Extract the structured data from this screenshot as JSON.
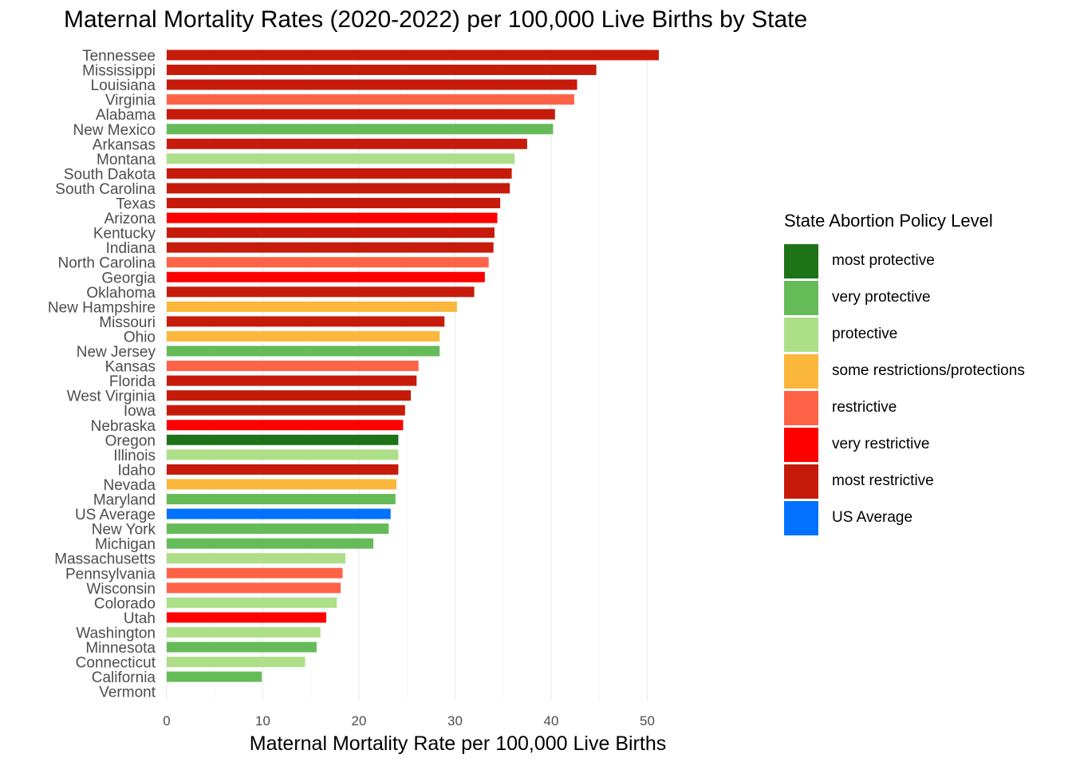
{
  "chart_data": {
    "type": "bar",
    "orientation": "horizontal",
    "title": "Maternal Mortality Rates (2020-2022) per 100,000 Live Births by State",
    "xlabel": "Maternal Mortality Rate per 100,000 Live Births",
    "ylabel": "",
    "xlim": [
      0,
      54
    ],
    "xticks": [
      0,
      10,
      20,
      30,
      40,
      50
    ],
    "grid": "vertical",
    "legend_title": "State Abortion Policy Level",
    "legend_position": "right",
    "policy_colors": {
      "most protective": "#1e7318",
      "very protective": "#65bb58",
      "protective": "#addf88",
      "some restrictions/protections": "#fbb73c",
      "restrictive": "#ff6347",
      "very restrictive": "#ff0000",
      "most restrictive": "#c61b0b",
      "US Average": "#0072ff"
    },
    "legend_entries": [
      "most protective",
      "very protective",
      "protective",
      "some restrictions/protections",
      "restrictive",
      "very restrictive",
      "most restrictive",
      "US Average"
    ],
    "bars": [
      {
        "category": "Tennessee",
        "value": 51.2,
        "policy": "most restrictive"
      },
      {
        "category": "Mississippi",
        "value": 44.7,
        "policy": "most restrictive"
      },
      {
        "category": "Louisiana",
        "value": 42.7,
        "policy": "most restrictive"
      },
      {
        "category": "Virginia",
        "value": 42.4,
        "policy": "restrictive"
      },
      {
        "category": "Alabama",
        "value": 40.4,
        "policy": "most restrictive"
      },
      {
        "category": "New Mexico",
        "value": 40.2,
        "policy": "very protective"
      },
      {
        "category": "Arkansas",
        "value": 37.5,
        "policy": "most restrictive"
      },
      {
        "category": "Montana",
        "value": 36.2,
        "policy": "protective"
      },
      {
        "category": "South Dakota",
        "value": 35.9,
        "policy": "most restrictive"
      },
      {
        "category": "South Carolina",
        "value": 35.7,
        "policy": "most restrictive"
      },
      {
        "category": "Texas",
        "value": 34.7,
        "policy": "most restrictive"
      },
      {
        "category": "Arizona",
        "value": 34.4,
        "policy": "very restrictive"
      },
      {
        "category": "Kentucky",
        "value": 34.1,
        "policy": "most restrictive"
      },
      {
        "category": "Indiana",
        "value": 34.0,
        "policy": "most restrictive"
      },
      {
        "category": "North Carolina",
        "value": 33.5,
        "policy": "restrictive"
      },
      {
        "category": "Georgia",
        "value": 33.1,
        "policy": "very restrictive"
      },
      {
        "category": "Oklahoma",
        "value": 32.0,
        "policy": "most restrictive"
      },
      {
        "category": "New Hampshire",
        "value": 30.2,
        "policy": "some restrictions/protections"
      },
      {
        "category": "Missouri",
        "value": 28.9,
        "policy": "most restrictive"
      },
      {
        "category": "Ohio",
        "value": 28.4,
        "policy": "some restrictions/protections"
      },
      {
        "category": "New Jersey",
        "value": 28.4,
        "policy": "very protective"
      },
      {
        "category": "Kansas",
        "value": 26.2,
        "policy": "restrictive"
      },
      {
        "category": "Florida",
        "value": 26.0,
        "policy": "most restrictive"
      },
      {
        "category": "West Virginia",
        "value": 25.4,
        "policy": "most restrictive"
      },
      {
        "category": "Iowa",
        "value": 24.8,
        "policy": "most restrictive"
      },
      {
        "category": "Nebraska",
        "value": 24.6,
        "policy": "very restrictive"
      },
      {
        "category": "Oregon",
        "value": 24.1,
        "policy": "most protective"
      },
      {
        "category": "Illinois",
        "value": 24.1,
        "policy": "protective"
      },
      {
        "category": "Idaho",
        "value": 24.1,
        "policy": "most restrictive"
      },
      {
        "category": "Nevada",
        "value": 23.9,
        "policy": "some restrictions/protections"
      },
      {
        "category": "Maryland",
        "value": 23.8,
        "policy": "very protective"
      },
      {
        "category": "US Average",
        "value": 23.3,
        "policy": "US Average"
      },
      {
        "category": "New York",
        "value": 23.1,
        "policy": "very protective"
      },
      {
        "category": "Michigan",
        "value": 21.5,
        "policy": "very protective"
      },
      {
        "category": "Massachusetts",
        "value": 18.6,
        "policy": "protective"
      },
      {
        "category": "Pennsylvania",
        "value": 18.3,
        "policy": "restrictive"
      },
      {
        "category": "Wisconsin",
        "value": 18.1,
        "policy": "restrictive"
      },
      {
        "category": "Colorado",
        "value": 17.7,
        "policy": "protective"
      },
      {
        "category": "Utah",
        "value": 16.6,
        "policy": "very restrictive"
      },
      {
        "category": "Washington",
        "value": 16.0,
        "policy": "protective"
      },
      {
        "category": "Minnesota",
        "value": 15.6,
        "policy": "very protective"
      },
      {
        "category": "Connecticut",
        "value": 14.4,
        "policy": "protective"
      },
      {
        "category": "California",
        "value": 9.9,
        "policy": "very protective"
      },
      {
        "category": "Vermont",
        "value": null,
        "policy": ""
      }
    ]
  }
}
